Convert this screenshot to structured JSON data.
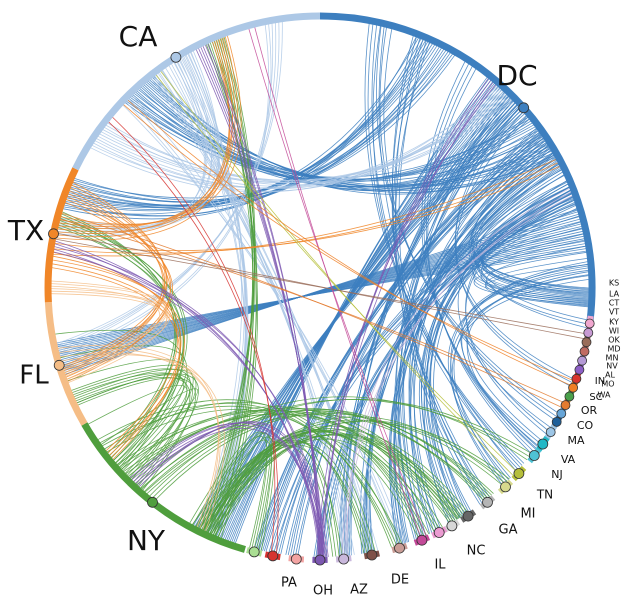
{
  "diagram": {
    "type": "chord",
    "states": [
      {
        "code": "DC",
        "color": "#3d7fbf",
        "size": "xl"
      },
      {
        "code": "KS",
        "color": "#f0a7cf",
        "size": "xs"
      },
      {
        "code": "LA",
        "color": "#c79ad3",
        "size": "xs"
      },
      {
        "code": "CT",
        "color": "#9a6d5a",
        "size": "xs"
      },
      {
        "code": "VT",
        "color": "#c06b62",
        "size": "xs"
      },
      {
        "code": "KY",
        "color": "#b59ad6",
        "size": "xs"
      },
      {
        "code": "WI",
        "color": "#8d5fc6",
        "size": "xs"
      },
      {
        "code": "OK",
        "color": "#d8362f",
        "size": "xs"
      },
      {
        "code": "MD",
        "color": "#ef7f25",
        "size": "xs"
      },
      {
        "code": "MN",
        "color": "#4aa04a",
        "size": "xs"
      },
      {
        "code": "NV",
        "color": "#e37b2f",
        "size": "xs"
      },
      {
        "code": "AL",
        "color": "#66a5d8",
        "size": "xs"
      },
      {
        "code": "MO",
        "color": "#1d5f99",
        "size": "xs"
      },
      {
        "code": "WA",
        "color": "#9dc6e6",
        "size": "xs"
      },
      {
        "code": "IN",
        "color": "#22b8c6",
        "size": "sm"
      },
      {
        "code": "SC",
        "color": "#4fc2d4",
        "size": "sm"
      },
      {
        "code": "OR",
        "color": "#b6bf3a",
        "size": "sm"
      },
      {
        "code": "CO",
        "color": "#d7d98d",
        "size": "sm"
      },
      {
        "code": "MA",
        "color": "#b5b5b5",
        "size": "sm"
      },
      {
        "code": "VA",
        "color": "#666666",
        "size": "sm"
      },
      {
        "code": "NJ",
        "color": "#d7d7d7",
        "size": "sm"
      },
      {
        "code": "TN",
        "color": "#eb9bd1",
        "size": "sm"
      },
      {
        "code": "MI",
        "color": "#c34a98",
        "size": "sm"
      },
      {
        "code": "GA",
        "color": "#c99d96",
        "size": "sm"
      },
      {
        "code": "NC",
        "color": "#7f5148",
        "size": "sm"
      },
      {
        "code": "IL",
        "color": "#c9b8dc",
        "size": "sm"
      },
      {
        "code": "DE",
        "color": "#7c58b1",
        "size": "sm"
      },
      {
        "code": "AZ",
        "color": "#f3a4a3",
        "size": "sm"
      },
      {
        "code": "OH",
        "color": "#d6332f",
        "size": "sm"
      },
      {
        "code": "PA",
        "color": "#aadf93",
        "size": "sm"
      },
      {
        "code": "NY",
        "color": "#4f9e3d",
        "size": "xl"
      },
      {
        "code": "FL",
        "color": "#f5bd86",
        "size": "xl"
      },
      {
        "code": "TX",
        "color": "#f08628",
        "size": "xl"
      },
      {
        "code": "CA",
        "color": "#adc8e6",
        "size": "xl"
      }
    ]
  }
}
